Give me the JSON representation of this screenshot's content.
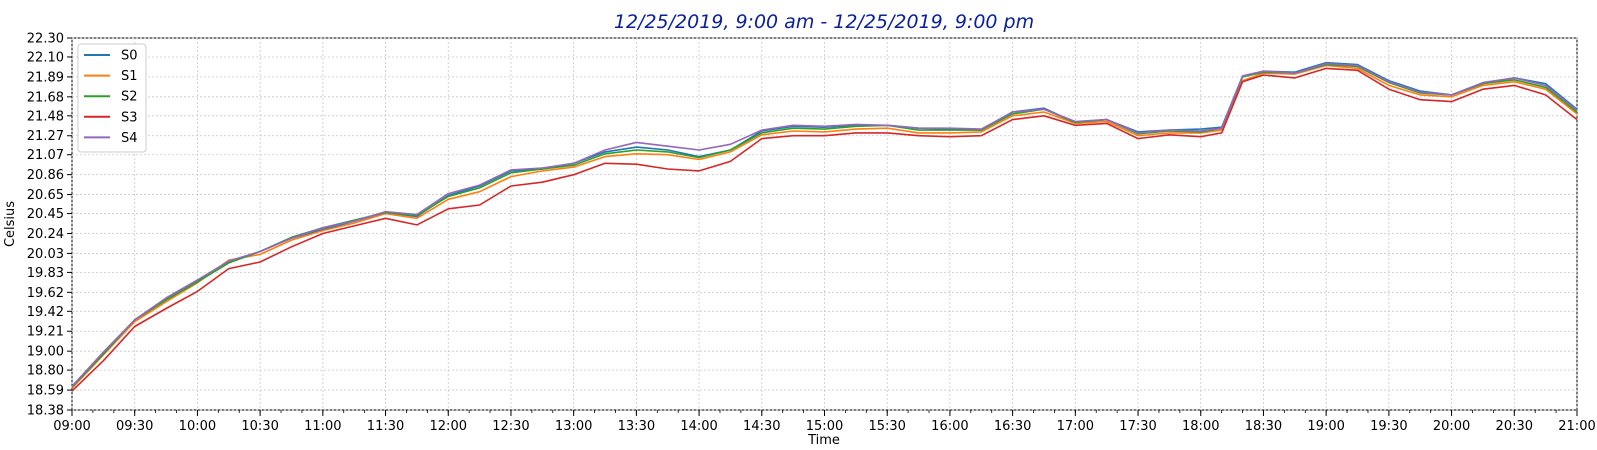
{
  "chart_data": {
    "type": "line",
    "title": "12/25/2019, 9:00 am - 12/25/2019, 9:00 pm",
    "xlabel": "Time",
    "ylabel": "Celsius",
    "xlim": [
      "09:00",
      "21:00"
    ],
    "ylim": [
      18.38,
      22.3
    ],
    "x_ticks": [
      "09:00",
      "09:30",
      "10:00",
      "10:30",
      "11:00",
      "11:30",
      "12:00",
      "12:30",
      "13:00",
      "13:30",
      "14:00",
      "14:30",
      "15:00",
      "15:30",
      "16:00",
      "16:30",
      "17:00",
      "17:30",
      "18:00",
      "18:30",
      "19:00",
      "19:30",
      "20:00",
      "20:30",
      "21:00"
    ],
    "y_ticks": [
      "18.38",
      "18.59",
      "18.80",
      "19.00",
      "19.21",
      "19.42",
      "19.62",
      "19.83",
      "20.03",
      "20.24",
      "20.45",
      "20.65",
      "20.86",
      "21.07",
      "21.27",
      "21.48",
      "21.68",
      "21.89",
      "22.10",
      "22.30"
    ],
    "grid": true,
    "legend_position": "top-left",
    "x": [
      "09:00",
      "09:15",
      "09:30",
      "09:45",
      "10:00",
      "10:15",
      "10:30",
      "10:45",
      "11:00",
      "11:15",
      "11:30",
      "11:45",
      "12:00",
      "12:15",
      "12:30",
      "12:45",
      "13:00",
      "13:15",
      "13:30",
      "13:45",
      "14:00",
      "14:15",
      "14:30",
      "14:45",
      "15:00",
      "15:15",
      "15:30",
      "15:45",
      "16:00",
      "16:15",
      "16:30",
      "16:45",
      "17:00",
      "17:15",
      "17:30",
      "17:45",
      "18:00",
      "18:10",
      "18:20",
      "18:30",
      "18:45",
      "19:00",
      "19:15",
      "19:30",
      "19:45",
      "20:00",
      "20:15",
      "20:30",
      "20:45",
      "21:00"
    ],
    "series": [
      {
        "name": "S0",
        "color": "#1f77b4",
        "values": [
          18.62,
          18.98,
          19.32,
          19.55,
          19.74,
          19.94,
          20.05,
          20.19,
          20.28,
          20.37,
          20.46,
          20.42,
          20.64,
          20.74,
          20.9,
          20.92,
          20.98,
          21.1,
          21.15,
          21.12,
          21.05,
          21.12,
          21.32,
          21.37,
          21.36,
          21.38,
          21.38,
          21.35,
          21.34,
          21.33,
          21.52,
          21.56,
          21.41,
          21.44,
          21.31,
          21.33,
          21.34,
          21.36,
          21.9,
          21.95,
          21.94,
          22.04,
          22.02,
          21.85,
          21.74,
          21.7,
          21.82,
          21.88,
          21.82,
          21.55
        ]
      },
      {
        "name": "S1",
        "color": "#ff7f0e",
        "values": [
          18.61,
          18.96,
          19.31,
          19.52,
          19.72,
          19.96,
          20.02,
          20.17,
          20.27,
          20.35,
          20.45,
          20.4,
          20.6,
          20.68,
          20.84,
          20.9,
          20.94,
          21.05,
          21.08,
          21.07,
          21.02,
          21.1,
          21.28,
          21.32,
          21.31,
          21.34,
          21.35,
          21.3,
          21.3,
          21.31,
          21.48,
          21.52,
          21.4,
          21.42,
          21.27,
          21.3,
          21.3,
          21.33,
          21.85,
          21.93,
          21.92,
          22.01,
          21.98,
          21.8,
          21.7,
          21.68,
          21.8,
          21.84,
          21.76,
          21.5
        ]
      },
      {
        "name": "S2",
        "color": "#2ca02c",
        "values": [
          18.62,
          18.97,
          19.33,
          19.54,
          19.73,
          19.93,
          20.05,
          20.2,
          20.3,
          20.38,
          20.46,
          20.43,
          20.63,
          20.72,
          20.88,
          20.92,
          20.96,
          21.08,
          21.12,
          21.1,
          21.04,
          21.12,
          21.3,
          21.35,
          21.34,
          21.37,
          21.38,
          21.33,
          21.33,
          21.33,
          21.5,
          21.55,
          21.41,
          21.44,
          21.29,
          21.32,
          21.31,
          21.35,
          21.89,
          21.94,
          21.93,
          22.02,
          22.0,
          21.83,
          21.72,
          21.7,
          21.82,
          21.86,
          21.78,
          21.52
        ]
      },
      {
        "name": "S3",
        "color": "#d62728",
        "values": [
          18.58,
          18.9,
          19.26,
          19.45,
          19.63,
          19.87,
          19.94,
          20.1,
          20.24,
          20.32,
          20.4,
          20.33,
          20.5,
          20.54,
          20.74,
          20.78,
          20.86,
          20.98,
          20.97,
          20.92,
          20.9,
          21.0,
          21.24,
          21.27,
          21.27,
          21.3,
          21.3,
          21.27,
          21.26,
          21.27,
          21.44,
          21.48,
          21.38,
          21.4,
          21.24,
          21.28,
          21.26,
          21.3,
          21.84,
          21.91,
          21.88,
          21.98,
          21.96,
          21.76,
          21.65,
          21.63,
          21.76,
          21.8,
          21.7,
          21.44
        ]
      },
      {
        "name": "S4",
        "color": "#9467bd",
        "values": [
          18.63,
          18.99,
          19.33,
          19.56,
          19.75,
          19.95,
          20.05,
          20.19,
          20.3,
          20.37,
          20.47,
          20.44,
          20.66,
          20.75,
          20.91,
          20.93,
          20.98,
          21.12,
          21.2,
          21.16,
          21.12,
          21.18,
          21.33,
          21.38,
          21.37,
          21.39,
          21.38,
          21.35,
          21.35,
          21.34,
          21.52,
          21.55,
          21.42,
          21.44,
          21.3,
          21.33,
          21.32,
          21.35,
          21.9,
          21.95,
          21.93,
          22.03,
          22.01,
          21.84,
          21.73,
          21.7,
          21.83,
          21.88,
          21.8,
          21.54
        ]
      }
    ]
  }
}
